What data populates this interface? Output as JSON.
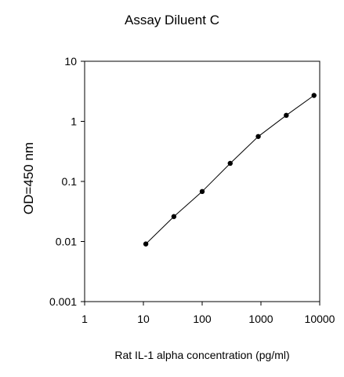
{
  "chart_data": {
    "type": "scatter",
    "title": "Assay Diluent C",
    "xlabel": "Rat IL-1 alpha concentration (pg/ml)",
    "ylabel": "OD=450 nm",
    "x_scale": "log",
    "y_scale": "log",
    "xlim": [
      1,
      10000
    ],
    "ylim": [
      0.001,
      10
    ],
    "x_ticks": [
      "1",
      "10",
      "100",
      "1000",
      "10000"
    ],
    "y_ticks": [
      "0.001",
      "0.01",
      "0.1",
      "1",
      "10"
    ],
    "grid": false,
    "legend": "none",
    "series": [
      {
        "x": [
          11,
          33,
          100,
          300,
          900,
          2700,
          8000
        ],
        "y": [
          0.0091,
          0.026,
          0.068,
          0.2,
          0.56,
          1.26,
          2.7
        ]
      }
    ]
  }
}
